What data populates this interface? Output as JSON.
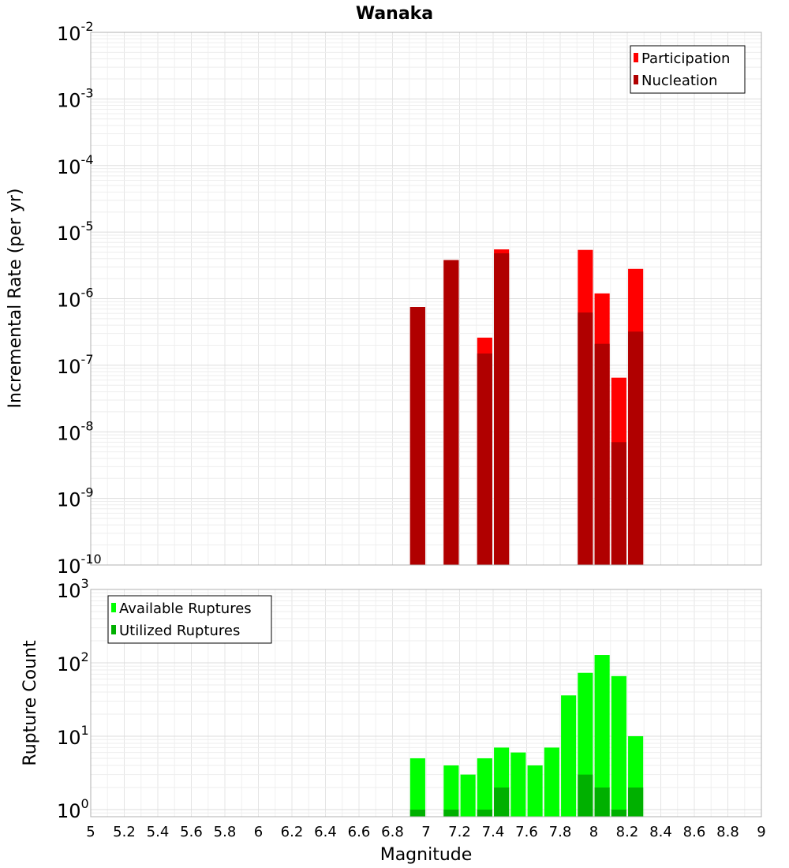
{
  "chart_data": [
    {
      "type": "bar",
      "title": "Wanaka",
      "xlabel": "",
      "ylabel": "Incremental Rate (per yr)",
      "yscale": "log",
      "xlim": [
        5,
        9
      ],
      "ylim": [
        1e-10,
        0.01
      ],
      "grid": true,
      "legend": "top-right",
      "ytick_exponents": [
        "-10",
        "-9",
        "-8",
        "-7",
        "-6",
        "-5",
        "-4",
        "-3",
        "-2"
      ],
      "ytick_base": "10",
      "series": [
        {
          "name": "Participation",
          "color": "#ff0000",
          "x": [
            6.95,
            7.15,
            7.35,
            7.45,
            7.95,
            8.05,
            8.15,
            8.25
          ],
          "values": [
            7.5e-07,
            3.8e-06,
            2.6e-07,
            5.5e-06,
            5.4e-06,
            1.2e-06,
            6.5e-08,
            2.8e-06
          ]
        },
        {
          "name": "Nucleation",
          "color": "#b00000",
          "x": [
            6.95,
            7.15,
            7.35,
            7.45,
            7.95,
            8.05,
            8.15,
            8.25
          ],
          "values": [
            7.5e-07,
            3.8e-06,
            1.5e-07,
            4.8e-06,
            6.2e-07,
            2.1e-07,
            7e-09,
            3.2e-07
          ]
        }
      ]
    },
    {
      "type": "bar",
      "title": "",
      "xlabel": "Magnitude",
      "ylabel": "Rupture Count",
      "yscale": "log",
      "xlim": [
        5,
        9
      ],
      "ylim": [
        0.8,
        1000
      ],
      "grid": true,
      "legend": "top-left",
      "xticks": [
        "5",
        "5.2",
        "5.4",
        "5.6",
        "5.8",
        "6",
        "6.2",
        "6.4",
        "6.6",
        "6.8",
        "7",
        "7.2",
        "7.4",
        "7.6",
        "7.8",
        "8",
        "8.2",
        "8.4",
        "8.6",
        "8.8",
        "9"
      ],
      "ytick_exponents": [
        "0",
        "1",
        "2",
        "3"
      ],
      "ytick_base": "10",
      "series": [
        {
          "name": "Available Ruptures",
          "color": "#00ff00",
          "x": [
            6.95,
            7.15,
            7.25,
            7.35,
            7.45,
            7.55,
            7.65,
            7.75,
            7.85,
            7.95,
            8.05,
            8.15,
            8.25
          ],
          "values": [
            5,
            4,
            3,
            5,
            7,
            6,
            4,
            7,
            36,
            73,
            128,
            66,
            10
          ]
        },
        {
          "name": "Utilized Ruptures",
          "color": "#00b000",
          "x": [
            6.95,
            7.15,
            7.35,
            7.45,
            7.95,
            8.05,
            8.15,
            8.25
          ],
          "values": [
            1,
            1,
            1,
            2,
            3,
            2,
            1,
            2
          ]
        }
      ]
    }
  ]
}
